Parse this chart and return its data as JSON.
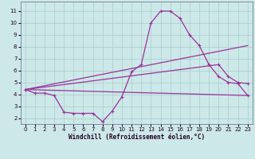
{
  "xlabel": "Windchill (Refroidissement éolien,°C)",
  "bg_color": "#cce8e8",
  "grid_color": "#aacccc",
  "line_color": "#993399",
  "xlim": [
    -0.5,
    23.5
  ],
  "ylim": [
    1.5,
    11.8
  ],
  "xticks": [
    0,
    1,
    2,
    3,
    4,
    5,
    6,
    7,
    8,
    9,
    10,
    11,
    12,
    13,
    14,
    15,
    16,
    17,
    18,
    19,
    20,
    21,
    22,
    23
  ],
  "yticks": [
    2,
    3,
    4,
    5,
    6,
    7,
    8,
    9,
    10,
    11
  ],
  "curve1_x": [
    0,
    1,
    2,
    3,
    4,
    5,
    6,
    7,
    8,
    9,
    10,
    11,
    12,
    13,
    14,
    15,
    16,
    17,
    18,
    19,
    20,
    21,
    22,
    23
  ],
  "curve1_y": [
    4.4,
    4.1,
    4.1,
    3.9,
    2.5,
    2.4,
    2.4,
    2.4,
    1.7,
    2.6,
    3.8,
    5.9,
    6.5,
    10.0,
    11.0,
    11.0,
    10.4,
    9.0,
    8.1,
    6.5,
    5.5,
    5.0,
    4.9,
    3.9
  ],
  "line2_x": [
    0,
    23
  ],
  "line2_y": [
    4.4,
    3.9
  ],
  "line3_x": [
    0,
    23
  ],
  "line3_y": [
    4.4,
    8.1
  ],
  "line4_x": [
    0,
    20,
    21,
    22,
    23
  ],
  "line4_y": [
    4.4,
    6.5,
    5.5,
    5.0,
    4.9
  ]
}
